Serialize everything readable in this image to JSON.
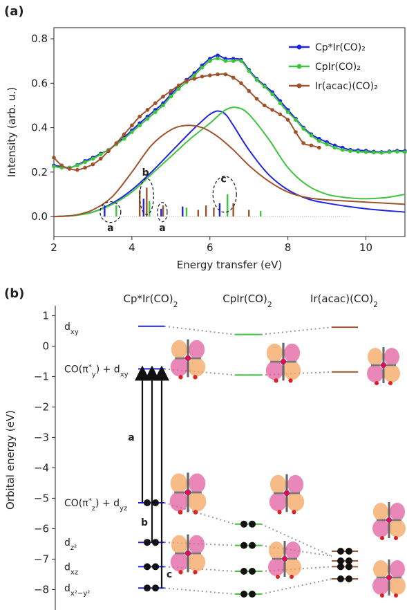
{
  "panel_a": {
    "label": "(a)",
    "chart_data": {
      "type": "line",
      "xlabel": "Energy transfer (eV)",
      "ylabel": "Intensity (arb. u.)",
      "xlim": [
        2,
        11
      ],
      "ylim": [
        -0.09,
        0.85
      ],
      "xticks": [
        2,
        4,
        6,
        8,
        10
      ],
      "yticks": [
        0.0,
        0.2,
        0.4,
        0.6,
        0.8
      ],
      "legend_position": "top-right",
      "colors": {
        "cp_star": "#1f24e0",
        "cp": "#3ec43e",
        "acac": "#a0522d"
      },
      "series": [
        {
          "name": "Cp*Ir(CO)₂",
          "key": "cp_star",
          "kind": "experiment",
          "x": [
            2.0,
            2.2,
            2.4,
            2.6,
            2.8,
            3.0,
            3.2,
            3.4,
            3.6,
            3.8,
            4.0,
            4.2,
            4.4,
            4.6,
            4.8,
            5.0,
            5.2,
            5.4,
            5.6,
            5.8,
            6.0,
            6.2,
            6.4,
            6.6,
            6.8,
            7.0,
            7.2,
            7.4,
            7.6,
            7.8,
            8.0,
            8.2,
            8.4,
            8.6,
            8.8,
            9.0,
            9.2,
            9.4,
            9.6,
            9.8,
            10.0,
            10.2,
            10.4,
            10.6,
            10.8,
            11.0
          ],
          "y": [
            0.23,
            0.225,
            0.22,
            0.232,
            0.25,
            0.265,
            0.283,
            0.3,
            0.328,
            0.356,
            0.388,
            0.42,
            0.45,
            0.48,
            0.51,
            0.55,
            0.585,
            0.615,
            0.645,
            0.68,
            0.71,
            0.725,
            0.71,
            0.71,
            0.705,
            0.66,
            0.62,
            0.59,
            0.56,
            0.52,
            0.48,
            0.44,
            0.4,
            0.37,
            0.35,
            0.335,
            0.32,
            0.31,
            0.3,
            0.298,
            0.296,
            0.292,
            0.29,
            0.293,
            0.296,
            0.295
          ]
        },
        {
          "name": "CpIr(CO)₂",
          "key": "cp",
          "kind": "experiment",
          "x": [
            2.0,
            2.2,
            2.4,
            2.6,
            2.8,
            3.0,
            3.2,
            3.4,
            3.6,
            3.8,
            4.0,
            4.2,
            4.4,
            4.6,
            4.8,
            5.0,
            5.2,
            5.4,
            5.6,
            5.8,
            6.0,
            6.2,
            6.4,
            6.6,
            6.8,
            7.0,
            7.2,
            7.4,
            7.6,
            7.8,
            8.0,
            8.2,
            8.4,
            8.6,
            8.8,
            9.0,
            9.2,
            9.4,
            9.6,
            9.8,
            10.0,
            10.2,
            10.4,
            10.6,
            10.8,
            11.0
          ],
          "y": [
            0.225,
            0.22,
            0.22,
            0.23,
            0.245,
            0.26,
            0.28,
            0.3,
            0.325,
            0.35,
            0.38,
            0.41,
            0.44,
            0.47,
            0.5,
            0.54,
            0.575,
            0.605,
            0.635,
            0.67,
            0.7,
            0.712,
            0.7,
            0.7,
            0.7,
            0.655,
            0.615,
            0.585,
            0.55,
            0.51,
            0.47,
            0.435,
            0.395,
            0.365,
            0.34,
            0.325,
            0.31,
            0.3,
            0.295,
            0.292,
            0.29,
            0.288,
            0.287,
            0.29,
            0.292,
            0.29
          ]
        },
        {
          "name": "Ir(acac)(CO)₂",
          "key": "acac",
          "kind": "experiment",
          "x": [
            2.0,
            2.2,
            2.4,
            2.6,
            2.8,
            3.0,
            3.2,
            3.4,
            3.6,
            3.8,
            4.0,
            4.2,
            4.4,
            4.6,
            4.8,
            5.0,
            5.2,
            5.4,
            5.6,
            5.8,
            6.0,
            6.2,
            6.4,
            6.6,
            6.8,
            7.0,
            7.2,
            7.4,
            7.6,
            7.8,
            8.0,
            8.2,
            8.4,
            8.6,
            8.8
          ],
          "y": [
            0.265,
            0.23,
            0.215,
            0.21,
            0.22,
            0.235,
            0.26,
            0.295,
            0.33,
            0.37,
            0.41,
            0.45,
            0.48,
            0.51,
            0.54,
            0.565,
            0.59,
            0.61,
            0.62,
            0.63,
            0.635,
            0.64,
            0.64,
            0.625,
            0.6,
            0.565,
            0.53,
            0.5,
            0.48,
            0.46,
            0.435,
            0.38,
            0.33,
            0.32,
            0.31
          ]
        },
        {
          "key": "cp_star",
          "kind": "theory",
          "x": [
            2.0,
            2.5,
            3.0,
            3.5,
            4.0,
            4.5,
            5.0,
            5.5,
            5.8,
            6.0,
            6.2,
            6.4,
            6.6,
            7.0,
            7.5,
            8.0,
            8.5,
            9.0,
            10.0,
            11.0
          ],
          "y": [
            0.0,
            0.005,
            0.02,
            0.06,
            0.12,
            0.2,
            0.29,
            0.38,
            0.43,
            0.46,
            0.475,
            0.46,
            0.41,
            0.3,
            0.19,
            0.12,
            0.08,
            0.06,
            0.035,
            0.02
          ]
        },
        {
          "key": "cp",
          "kind": "theory",
          "x": [
            2.0,
            2.5,
            3.0,
            3.5,
            4.0,
            4.5,
            5.0,
            5.5,
            6.0,
            6.4,
            6.7,
            7.0,
            7.5,
            8.0,
            8.5,
            9.0,
            9.5,
            10.0,
            10.5,
            11.0
          ],
          "y": [
            0.0,
            0.004,
            0.02,
            0.055,
            0.11,
            0.19,
            0.27,
            0.35,
            0.42,
            0.48,
            0.49,
            0.46,
            0.35,
            0.22,
            0.14,
            0.1,
            0.085,
            0.08,
            0.085,
            0.1
          ]
        },
        {
          "key": "acac",
          "kind": "theory",
          "x": [
            2.0,
            2.5,
            3.0,
            3.5,
            4.0,
            4.5,
            5.0,
            5.4,
            5.8,
            6.2,
            6.6,
            7.0,
            7.5,
            8.0,
            8.5,
            9.0,
            9.5,
            10.0,
            10.5,
            11.0
          ],
          "y": [
            0.0,
            0.005,
            0.03,
            0.09,
            0.2,
            0.32,
            0.39,
            0.41,
            0.4,
            0.36,
            0.3,
            0.23,
            0.16,
            0.11,
            0.085,
            0.075,
            0.07,
            0.065,
            0.06,
            0.055
          ]
        }
      ],
      "sticks": [
        {
          "key": "cp_star",
          "x": [
            3.3,
            4.3,
            4.75,
            5.3,
            6.25
          ],
          "h": [
            0.05,
            0.08,
            0.035,
            0.045,
            0.06
          ]
        },
        {
          "key": "cp",
          "x": [
            3.6,
            4.45,
            5.4,
            6.45,
            7.3
          ],
          "h": [
            0.05,
            0.07,
            0.04,
            0.1,
            0.025
          ]
        },
        {
          "key": "acac",
          "x": [
            4.2,
            4.38,
            4.8,
            5.7,
            5.9,
            6.1,
            6.6,
            7.0
          ],
          "h": [
            0.12,
            0.13,
            0.05,
            0.03,
            0.05,
            0.04,
            0.06,
            0.03
          ]
        }
      ],
      "annotations": [
        {
          "text": "a",
          "x": 3.45,
          "y": -0.05
        },
        {
          "text": "b",
          "x": 4.35,
          "y": 0.2
        },
        {
          "text": "a",
          "x": 4.78,
          "y": -0.05
        },
        {
          "text": "c",
          "x": 6.35,
          "y": 0.17
        }
      ]
    }
  },
  "panel_b": {
    "label": "(b)",
    "chart_data": {
      "type": "diagram",
      "ylabel": "Orbital energy (eV)",
      "ylim": [
        -8.4,
        1.1
      ],
      "yticks": [
        1,
        0,
        -1,
        -2,
        -3,
        -4,
        -5,
        -6,
        -7,
        -8
      ],
      "columns": [
        "Cp*Ir(CO)₂",
        "CpIr(CO)₂",
        "Ir(acac)(CO)₂"
      ],
      "orbital_labels": [
        "dxy",
        "CO(π*y) + dxy",
        "CO(π*z) + dyz",
        "dz²",
        "dxz",
        "dx²−y²"
      ],
      "levels": {
        "cp_star": [
          0.65,
          -0.75,
          -5.15,
          -6.45,
          -7.25,
          -7.95
        ],
        "cp": [
          0.38,
          -0.95,
          -5.85,
          -6.55,
          -7.4,
          -8.15
        ],
        "acac": [
          0.62,
          -0.85,
          -6.9,
          -6.9,
          -7.25,
          -7.65
        ]
      },
      "occupied": {
        "cp_star": [
          2,
          3,
          4,
          5
        ],
        "cp": [
          2,
          3,
          4,
          5
        ],
        "acac": [
          2,
          3,
          4,
          5
        ]
      },
      "transition_labels": [
        "a",
        "b",
        "c"
      ]
    }
  }
}
